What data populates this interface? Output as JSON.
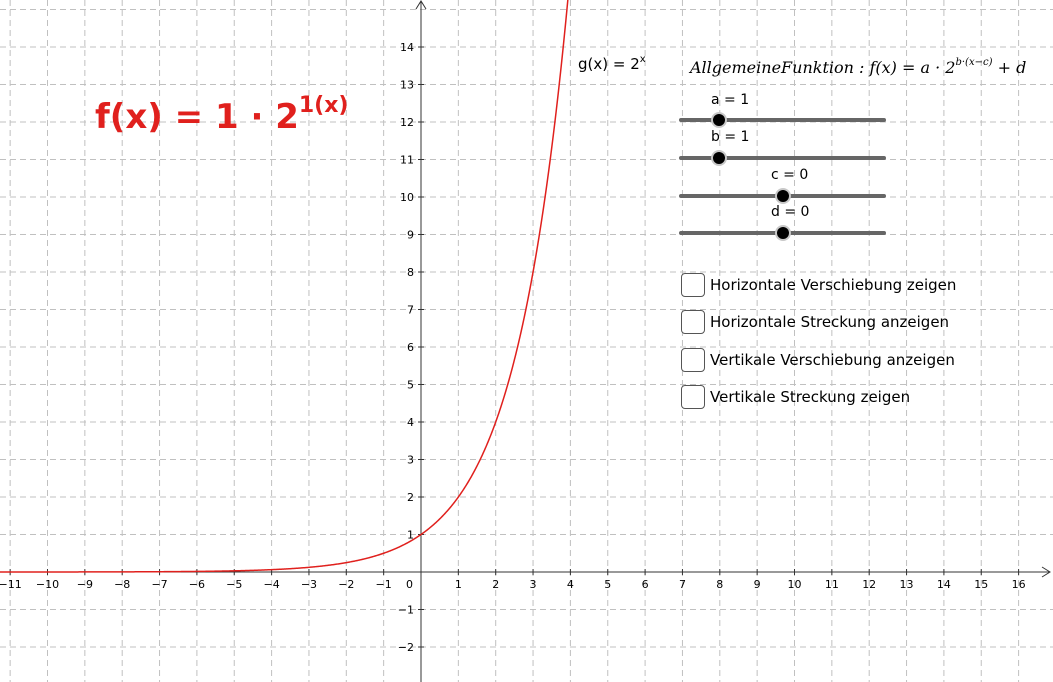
{
  "functions": {
    "g_label_base": "g(x) = 2",
    "g_label_exp": "x",
    "f_big_base": "f(x) = 1 · 2",
    "f_big_exp": "1(x)",
    "general_prefix": "AllgemeineFunktion : f(x) = a · 2",
    "general_exp": "b·(x−c)",
    "general_suffix": " + d",
    "curve_color": "#e0201d"
  },
  "sliders": [
    {
      "label": "a = 1",
      "value": 1
    },
    {
      "label": "b = 1",
      "value": 1
    },
    {
      "label": "c = 0",
      "value": 0
    },
    {
      "label": "d = 0",
      "value": 0
    }
  ],
  "checkboxes": [
    {
      "label": "Horizontale Verschiebung zeigen",
      "checked": false
    },
    {
      "label": "Horizontale Streckung anzeigen",
      "checked": false
    },
    {
      "label": "Vertikale Verschiebung anzeigen",
      "checked": false
    },
    {
      "label": "Vertikale Streckung zeigen",
      "checked": false
    }
  ],
  "axes": {
    "x_min": -11,
    "x_max": 16,
    "y_min": -2,
    "y_max": 14,
    "origin_label": "0",
    "x_ticks": [
      "−11",
      "−10",
      "−9",
      "−8",
      "−7",
      "−6",
      "−5",
      "−4",
      "−3",
      "−2",
      "−1",
      "1",
      "2",
      "3",
      "4",
      "5",
      "6",
      "7",
      "8",
      "9",
      "10",
      "11",
      "12",
      "13",
      "14",
      "15",
      "16"
    ],
    "y_ticks": [
      "−2",
      "−1",
      "1",
      "2",
      "3",
      "4",
      "5",
      "6",
      "7",
      "8",
      "9",
      "10",
      "11",
      "12",
      "13",
      "14"
    ],
    "grid": true,
    "grid_color": "#c0c0c0"
  }
}
